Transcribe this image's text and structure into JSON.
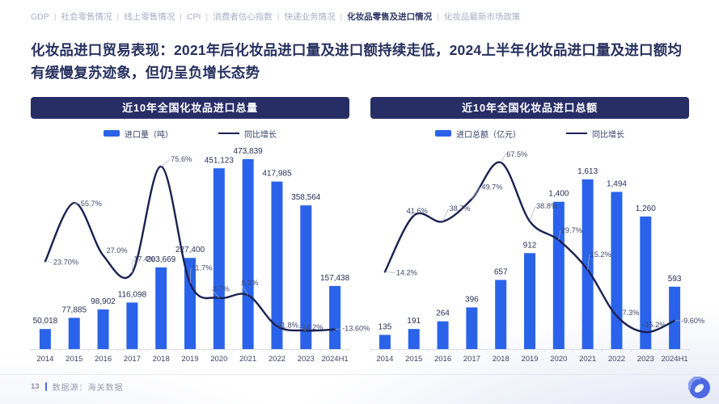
{
  "nav": {
    "separator": "|",
    "items": [
      {
        "label": "GDP",
        "active": false
      },
      {
        "label": "社会零售情况",
        "active": false
      },
      {
        "label": "线上零售情况",
        "active": false
      },
      {
        "label": "CPI",
        "active": false
      },
      {
        "label": "消费者信心指数",
        "active": false
      },
      {
        "label": "快递业务情况",
        "active": false
      },
      {
        "label": "化妆品零售及进口情况",
        "active": true
      },
      {
        "label": "化妆品最新市场政策",
        "active": false
      }
    ]
  },
  "title": "化妆品进口贸易表现：2021年后化妆品进口量及进口额持续走低，2024上半年化妆品进口量及进口额均有缓慢复苏迹象，但仍呈负增长态势",
  "footer": {
    "page_number": "13",
    "source": "数据源：海关数据"
  },
  "colors": {
    "bar_blue": "#2a63e9",
    "line_navy": "#1b2150",
    "header_bg": "#272e66",
    "accent_blue": "#4c6fe8"
  },
  "chart_data": [
    {
      "type": "bar",
      "title": "近10年全国化妆品进口总量",
      "legend_position": "top",
      "grid": false,
      "categories": [
        "2014",
        "2015",
        "2016",
        "2017",
        "2018",
        "2019",
        "2020",
        "2021",
        "2022",
        "2023",
        "2024H1"
      ],
      "series": [
        {
          "name": "进口量（吨）",
          "kind": "bar",
          "values": [
            50018,
            77885,
            98902,
            116098,
            203669,
            227400,
            451123,
            473839,
            417985,
            358564,
            157438
          ],
          "labels": [
            "50,018",
            "77,885",
            "98,902",
            "116,098",
            "203,669",
            "227,400",
            "451,123",
            "473,839",
            "417,985",
            "358,564",
            "157,438"
          ]
        },
        {
          "name": "同比增长",
          "kind": "line",
          "values": [
            23.7,
            55.7,
            27.0,
            17.4,
            75.6,
            11.7,
            3.7,
            5.2,
            -11.8,
            -14.2,
            -13.6
          ],
          "labels": [
            "23.70%",
            "55.7%",
            "27.0%",
            "17.4%",
            "75.6%",
            "11.7%",
            "3.7%",
            "5.2%",
            "-11.8%",
            "-14.2%",
            "-13.60%"
          ],
          "ylim": [
            -20,
            80
          ]
        }
      ]
    },
    {
      "type": "bar",
      "title": "近10年全国化妆品进口总额",
      "legend_position": "top",
      "grid": false,
      "categories": [
        "2014",
        "2015",
        "2016",
        "2017",
        "2018",
        "2019",
        "2020",
        "2021",
        "2022",
        "2023",
        "2024H1"
      ],
      "series": [
        {
          "name": "进口总额（亿元）",
          "kind": "bar",
          "values": [
            135,
            191,
            264,
            396,
            657,
            912,
            1400,
            1613,
            1494,
            1260,
            593
          ],
          "labels": [
            "135",
            "191",
            "264",
            "396",
            "657",
            "912",
            "1,400",
            "1,613",
            "1,494",
            "1,260",
            "593"
          ]
        },
        {
          "name": "同比增长",
          "kind": "line",
          "values": [
            14.2,
            41.6,
            38.7,
            49.7,
            67.5,
            38.8,
            29.7,
            15.2,
            -7.3,
            -15.2,
            -9.6
          ],
          "labels": [
            "14.2%",
            "41.6%",
            "38.7%",
            "49.7%",
            "67.5%",
            "38.8%",
            "29.7%",
            "15.2%",
            "-7.3%",
            "-15.2%",
            "-9.60%"
          ],
          "ylim": [
            -20,
            80
          ]
        }
      ]
    }
  ]
}
